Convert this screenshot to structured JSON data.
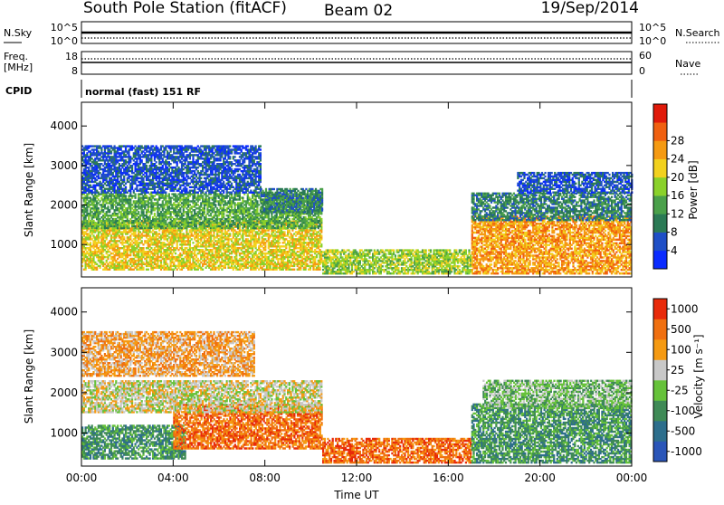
{
  "header": {
    "title": "South Pole Station (fitACF)",
    "beam": "Beam 02",
    "date": "19/Sep/2014"
  },
  "summary": {
    "nsky_label": "N.Sky",
    "nsky_ticks": [
      "10^5",
      "10^0"
    ],
    "nsearch_label": "N.Search",
    "nsearch_ticks": [
      "10^5",
      "10^0"
    ],
    "freq_label_line1": "Freq.",
    "freq_label_line2": "[MHz]",
    "freq_ticks": [
      "18",
      "8"
    ],
    "nave_label": "Nave",
    "nave_ticks": [
      "60",
      "0"
    ],
    "cpid_label": "CPID",
    "cpid_text": "normal (fast) 151 RF"
  },
  "chart_data": [
    {
      "type": "heatmap",
      "name": "power-panel",
      "ylabel": "Slant Range [km]",
      "yticks": [
        1000,
        2000,
        3000,
        4000
      ],
      "ylim": [
        180,
        4600
      ],
      "xlim": [
        0,
        24
      ],
      "colorbar": {
        "label": "Power [dB]",
        "ticks": [
          "4",
          "8",
          "12",
          "16",
          "20",
          "24",
          "28"
        ],
        "colors": [
          "#0a2bff",
          "#1f4fc6",
          "#2b7a55",
          "#4aa04a",
          "#8ad12a",
          "#f2d11e",
          "#f59a12",
          "#f06010",
          "#e01a0a"
        ]
      },
      "bands": [
        {
          "t0": 0.0,
          "t1": 10.5,
          "r0": 350,
          "r1": 1600,
          "level": 5
        },
        {
          "t0": 0.0,
          "t1": 10.5,
          "r0": 1400,
          "r1": 2300,
          "level": 3
        },
        {
          "t0": 0.0,
          "t1": 7.8,
          "r0": 2300,
          "r1": 3500,
          "level": 1
        },
        {
          "t0": 7.8,
          "t1": 10.5,
          "r0": 1800,
          "r1": 2400,
          "level": 2
        },
        {
          "t0": 10.5,
          "t1": 17.0,
          "r0": 250,
          "r1": 850,
          "level": 4
        },
        {
          "t0": 17.0,
          "t1": 24.0,
          "r0": 250,
          "r1": 1700,
          "level": 6
        },
        {
          "t0": 17.0,
          "t1": 24.0,
          "r0": 1600,
          "r1": 2300,
          "level": 2
        },
        {
          "t0": 19.0,
          "t1": 24.0,
          "r0": 2300,
          "r1": 2800,
          "level": 1
        }
      ]
    },
    {
      "type": "heatmap",
      "name": "velocity-panel",
      "xlabel": "Time UT",
      "xticks": [
        "00:00",
        "04:00",
        "08:00",
        "12:00",
        "16:00",
        "20:00",
        "00:00"
      ],
      "ylabel": "Slant Range [km]",
      "yticks": [
        1000,
        2000,
        3000,
        4000
      ],
      "ylim": [
        180,
        4600
      ],
      "xlim": [
        0,
        24
      ],
      "colorbar": {
        "label": "Velocity [m s⁻¹]",
        "ticks": [
          "1000",
          "500",
          "100",
          "25",
          "-25",
          "-100",
          "-500",
          "-1000"
        ],
        "colors": [
          "#2a55b8",
          "#2d6e8c",
          "#3f8a56",
          "#66c23a",
          "#c8c8c8",
          "#f59a12",
          "#f07010",
          "#e82a0a"
        ]
      },
      "bands": [
        {
          "t0": 0.0,
          "t1": 4.5,
          "r0": 350,
          "r1": 1200,
          "level": 2
        },
        {
          "t0": 4.0,
          "t1": 10.5,
          "r0": 600,
          "r1": 1700,
          "level": 6
        },
        {
          "t0": 0.0,
          "t1": 10.5,
          "r0": 1500,
          "r1": 2300,
          "level": 4
        },
        {
          "t0": 0.0,
          "t1": 7.5,
          "r0": 2400,
          "r1": 3500,
          "level": 5
        },
        {
          "t0": 10.5,
          "t1": 17.0,
          "r0": 250,
          "r1": 850,
          "level": 6
        },
        {
          "t0": 17.0,
          "t1": 24.0,
          "r0": 250,
          "r1": 1700,
          "level": 2
        },
        {
          "t0": 17.5,
          "t1": 24.0,
          "r0": 1600,
          "r1": 2300,
          "level": 3
        }
      ]
    }
  ]
}
